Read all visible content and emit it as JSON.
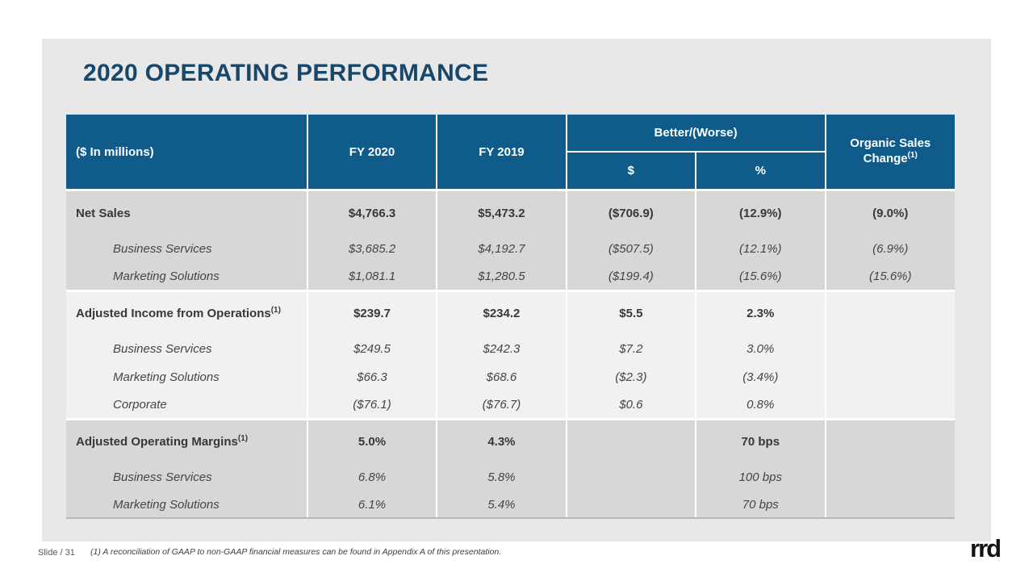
{
  "slide": {
    "title": "2020 OPERATING PERFORMANCE",
    "page_label": "Slide / 31",
    "footnote": "(1) A reconciliation of GAAP to non-GAAP financial measures can be found in Appendix A of this presentation.",
    "logo_text": "rrd"
  },
  "colors": {
    "header_blue": "#0F5C8A",
    "title_navy": "#17476B",
    "band_dark": "#D7D7D7",
    "band_light": "#F1F1F1",
    "canvas_gray": "#E8E8E8",
    "header_text": "#FFFFFF"
  },
  "table": {
    "header": {
      "col0": "($ In millions)",
      "fy2020": "FY 2020",
      "fy2019": "FY 2019",
      "better_worse": "Better/(Worse)",
      "dollar": "$",
      "percent": "%",
      "organic_label": "Organic Sales Change",
      "organic_sup": "(1)"
    },
    "sections": [
      {
        "style": "dark",
        "rows": [
          {
            "type": "header",
            "label": "Net Sales",
            "sup": "",
            "values": [
              "$4,766.3",
              "$5,473.2",
              "($706.9)",
              "(12.9%)",
              "(9.0%)"
            ]
          },
          {
            "type": "sub",
            "label": "Business Services",
            "values": [
              "$3,685.2",
              "$4,192.7",
              "($507.5)",
              "(12.1%)",
              "(6.9%)"
            ]
          },
          {
            "type": "sub",
            "label": "Marketing Solutions",
            "values": [
              "$1,081.1",
              "$1,280.5",
              "($199.4)",
              "(15.6%)",
              "(15.6%)"
            ]
          }
        ]
      },
      {
        "style": "light",
        "rows": [
          {
            "type": "header",
            "label": "Adjusted Income from Operations",
            "sup": "(1)",
            "values": [
              "$239.7",
              "$234.2",
              "$5.5",
              "2.3%",
              ""
            ]
          },
          {
            "type": "sub",
            "label": "Business Services",
            "values": [
              "$249.5",
              "$242.3",
              "$7.2",
              "3.0%",
              ""
            ]
          },
          {
            "type": "sub",
            "label": "Marketing Solutions",
            "values": [
              "$66.3",
              "$68.6",
              "($2.3)",
              "(3.4%)",
              ""
            ]
          },
          {
            "type": "sub",
            "label": "Corporate",
            "values": [
              "($76.1)",
              "($76.7)",
              "$0.6",
              "0.8%",
              ""
            ]
          }
        ]
      },
      {
        "style": "dark",
        "rows": [
          {
            "type": "header",
            "label": "Adjusted Operating Margins",
            "sup": "(1)",
            "values": [
              "5.0%",
              "4.3%",
              "",
              "70 bps",
              ""
            ]
          },
          {
            "type": "sub",
            "label": "Business Services",
            "values": [
              "6.8%",
              "5.8%",
              "",
              "100 bps",
              ""
            ]
          },
          {
            "type": "sub",
            "label": "Marketing Solutions",
            "values": [
              "6.1%",
              "5.4%",
              "",
              "70 bps",
              ""
            ]
          }
        ]
      }
    ]
  }
}
